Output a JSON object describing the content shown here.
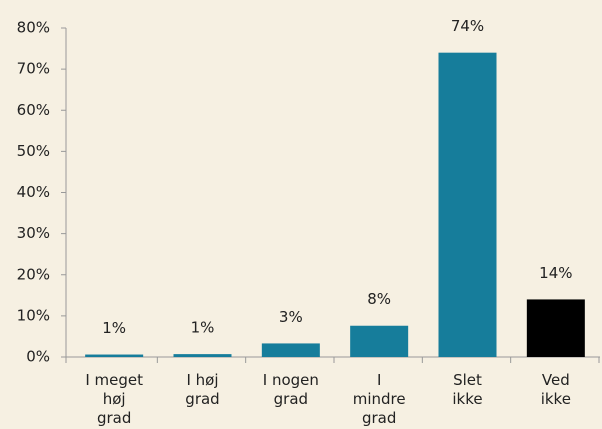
{
  "chart_data": {
    "type": "bar",
    "categories": [
      "I meget høj grad",
      "I høj grad",
      "I nogen grad",
      "I mindre grad",
      "Slet ikke",
      "Ved ikke"
    ],
    "values": [
      0.6,
      0.7,
      3.3,
      7.6,
      74,
      14
    ],
    "value_labels": [
      "1%",
      "1%",
      "3%",
      "8%",
      "74%",
      "14%"
    ],
    "colors": [
      "#167d9b",
      "#167d9b",
      "#167d9b",
      "#167d9b",
      "#167d9b",
      "#000000"
    ],
    "ylim": [
      0,
      80
    ],
    "yticks": [
      {
        "value": 0,
        "label": "0%"
      },
      {
        "value": 10,
        "label": "10%"
      },
      {
        "value": 20,
        "label": "20%"
      },
      {
        "value": 30,
        "label": "30%"
      },
      {
        "value": 40,
        "label": "40%"
      },
      {
        "value": 50,
        "label": "50%"
      },
      {
        "value": 60,
        "label": "60%"
      },
      {
        "value": 70,
        "label": "70%"
      },
      {
        "value": 80,
        "label": "80%"
      }
    ],
    "grid": false
  }
}
